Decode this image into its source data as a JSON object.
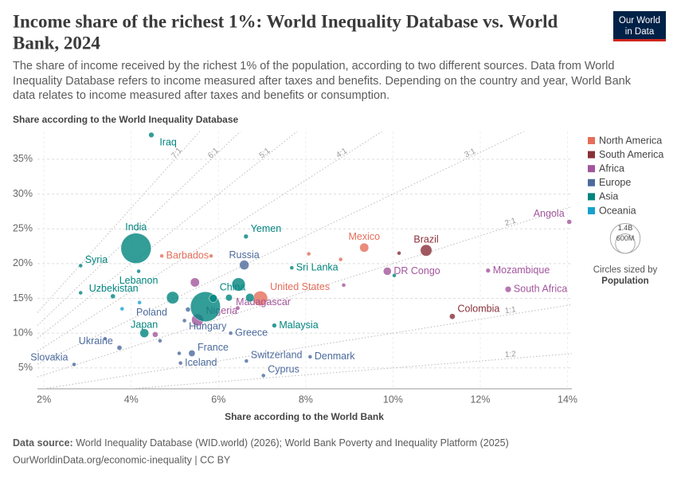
{
  "chart_data": {
    "type": "scatter",
    "title_lines": [
      "Income share of the richest 1%: World Inequality Database vs. World",
      "Bank, 2024"
    ],
    "subtitle_lines": [
      "The share of income received by the richest 1% of the population, according to two different sources. Data from World",
      "Inequality Database refers to income measured after taxes and benefits. Depending on the country and year, World Bank",
      "data relates to income measured after taxes and benefits or consumption."
    ],
    "logo": [
      "Our World",
      "in Data"
    ],
    "y_label": "Share according to the World Inequality Database",
    "x_label": "Share according to the World Bank",
    "xlim": [
      1.85,
      14.1
    ],
    "ylim": [
      2,
      39
    ],
    "xticks": [
      {
        "value": 2,
        "label": "2%"
      },
      {
        "value": 4,
        "label": "4%"
      },
      {
        "value": 6,
        "label": "6%"
      },
      {
        "value": 8,
        "label": "8%"
      },
      {
        "value": 10,
        "label": "10%"
      },
      {
        "value": 12,
        "label": "12%"
      },
      {
        "value": 14,
        "label": "14%"
      }
    ],
    "yticks": [
      {
        "value": 5,
        "label": "5%"
      },
      {
        "value": 10,
        "label": "10%"
      },
      {
        "value": 15,
        "label": "15%"
      },
      {
        "value": 20,
        "label": "20%"
      },
      {
        "value": 25,
        "label": "25%"
      },
      {
        "value": 30,
        "label": "30%"
      },
      {
        "value": 35,
        "label": "35%"
      }
    ],
    "grid": true,
    "ratio_lines": [
      {
        "label": "7:1",
        "slope": 7
      },
      {
        "label": "6:1",
        "slope": 6
      },
      {
        "label": "5:1",
        "slope": 5
      },
      {
        "label": "4:1",
        "slope": 4
      },
      {
        "label": "3:1",
        "slope": 3
      },
      {
        "label": "2:1",
        "slope": 2
      },
      {
        "label": "1:1",
        "slope": 1
      },
      {
        "label": "1:2",
        "slope": 0.5
      }
    ],
    "series": [
      {
        "name": "North America",
        "color": "#e56e5a",
        "x": [
          9.34,
          4.7,
          6.96,
          5.83,
          8.07,
          8.8
        ],
        "values": [
          22.3,
          21.1,
          15.0,
          21.1,
          21.4,
          20.6
        ],
        "sizes": [
          129,
          0.3,
          335,
          10,
          4,
          3
        ],
        "labels": [
          "Mexico",
          "Barbados",
          "United States",
          null,
          null,
          null
        ]
      },
      {
        "name": "South America",
        "color": "#883039",
        "x": [
          10.76,
          11.36,
          10.14
        ],
        "values": [
          21.9,
          12.4,
          21.5
        ],
        "sizes": [
          211,
          52,
          8
        ],
        "labels": [
          "Brazil",
          "Colombia",
          null
        ]
      },
      {
        "name": "Africa",
        "color": "#a2559c",
        "x": [
          9.87,
          12.18,
          14.04,
          12.64,
          5.52,
          6.44,
          5.46,
          8.87,
          4.55
        ],
        "values": [
          18.9,
          19.0,
          26.0,
          16.3,
          11.9,
          13.6,
          17.3,
          16.9,
          9.8
        ],
        "sizes": [
          102,
          33,
          37,
          60,
          225,
          30,
          130,
          20,
          50
        ],
        "labels": [
          "DR Congo",
          "Mozambique",
          "Angola",
          "South Africa",
          "Nigeria",
          "Madagascar",
          null,
          null,
          null
        ]
      },
      {
        "name": "Europe",
        "color": "#4c6a9c",
        "x": [
          6.59,
          5.3,
          5.22,
          6.28,
          3.73,
          5.39,
          5.13,
          2.69,
          6.64,
          8.1,
          7.03,
          4.66,
          3.4,
          5.1
        ],
        "values": [
          19.8,
          13.4,
          11.8,
          10.0,
          7.9,
          7.1,
          5.7,
          5.5,
          6.0,
          6.6,
          3.9,
          8.9,
          9.2,
          7.1
        ],
        "sizes": [
          144,
          37,
          10,
          10,
          38,
          68,
          0.4,
          5.4,
          8.8,
          5.9,
          1.3,
          10,
          5,
          17
        ],
        "labels": [
          "Russia",
          "Poland",
          "Hungary",
          "Greece",
          "Ukraine",
          "France",
          "Iceland",
          "Slovakia",
          "Switzerland",
          "Denmark",
          "Cyprus",
          null,
          null,
          null
        ]
      },
      {
        "name": "Asia",
        "color": "#00847e",
        "x": [
          4.46,
          4.11,
          6.63,
          4.17,
          2.84,
          7.68,
          3.58,
          5.7,
          4.3,
          7.28,
          6.46,
          4.95,
          5.88,
          6.72,
          6.24,
          10.03,
          2.84
        ],
        "values": [
          38.5,
          22.2,
          23.9,
          18.9,
          19.7,
          19.4,
          15.3,
          13.8,
          10.0,
          11.1,
          17.0,
          15.1,
          15.0,
          15.1,
          15.1,
          18.3,
          15.8
        ],
        "sizes": [
          45,
          1438,
          34,
          5.4,
          23,
          22,
          36,
          1410,
          124,
          34,
          278,
          240,
          100,
          115,
          72,
          10,
          10
        ],
        "labels": [
          "Iraq",
          "India",
          "Yemen",
          "Lebanon",
          "Syria",
          "Sri Lanka",
          "Uzbekistan",
          "China",
          "Japan",
          "Malaysia",
          null,
          null,
          null,
          null,
          null,
          null,
          null
        ]
      },
      {
        "name": "Oceania",
        "color": "#18a1cd",
        "x": [
          3.79,
          4.19
        ],
        "values": [
          13.5,
          14.4
        ],
        "sizes": [
          10,
          1
        ],
        "labels": [
          null,
          null
        ]
      }
    ],
    "size_legend": {
      "values": [
        1400,
        600
      ],
      "labels": [
        "1.4B",
        "600M"
      ],
      "title_lines": [
        "Circles sized by",
        "Population"
      ]
    },
    "source_label": "Data source:",
    "source": "World Inequality Database (WID.world) (2026); World Bank Poverty and Inequality Platform (2025)",
    "footer": "OurWorldinData.org/economic-inequality | CC BY"
  }
}
